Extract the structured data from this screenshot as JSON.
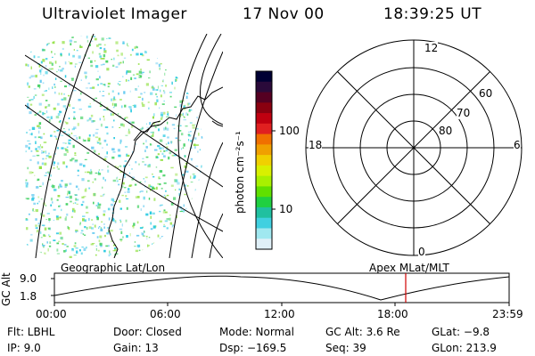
{
  "header": {
    "instrument": "Ultraviolet Imager",
    "date": "17 Nov 00",
    "time": "18:39:25 UT"
  },
  "colorbar": {
    "label": "photon cm⁻²s⁻¹",
    "ticks": [
      "100",
      "10"
    ],
    "colors_top_to_bottom": [
      "#000033",
      "#2a0a3a",
      "#550022",
      "#8a0010",
      "#c00010",
      "#e02020",
      "#f07000",
      "#f0a000",
      "#f0d000",
      "#d8f000",
      "#a8f000",
      "#60e000",
      "#20d040",
      "#20c0a0",
      "#40d0e0",
      "#a0e8f0",
      "#e0f0f8"
    ]
  },
  "geo_panel": {
    "label": "Geographic Lat/Lon",
    "speckle_colors": [
      "#20c8e0",
      "#40d060",
      "#90e040",
      "#60c8f0"
    ]
  },
  "polar_panel": {
    "label": "Apex MLat/MLT",
    "lat_labels": [
      "60",
      "70",
      "80"
    ],
    "mlt_labels": {
      "top": "12",
      "left": "18",
      "right": "6",
      "bottom": "0"
    }
  },
  "altitude_plot": {
    "ylabel": "GC Alt",
    "yticks": [
      "9.0",
      "1.8"
    ],
    "xticks": [
      "00:00",
      "06:00",
      "12:00",
      "18:00",
      "23:59"
    ],
    "marker_color": "#d00000",
    "marker_time": "18:39"
  },
  "status": {
    "flt": "Flt: LBHL",
    "ip": "IP:  9.0",
    "door": "Door: Closed",
    "gain": "Gain: 13",
    "mode": "Mode: Normal",
    "dsp": "Dsp: −169.5",
    "gcalt": "GC Alt: 3.6 Re",
    "seq": "Seq: 39",
    "glat": "GLat:  −9.8",
    "glon": "GLon: 213.9"
  }
}
